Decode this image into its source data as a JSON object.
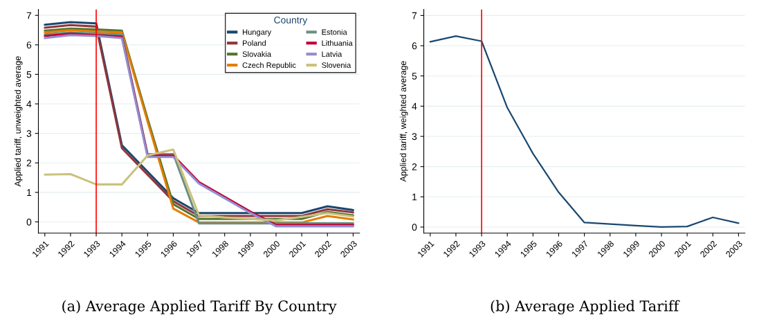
{
  "chart_data": [
    {
      "type": "line",
      "title": "(a) Average Applied Tariff By Country",
      "ylabel": "Applied tariff, unweighted average",
      "legend_title": "Country",
      "legend": "top right",
      "grid": "y",
      "x": [
        1991,
        1992,
        1993,
        1994,
        1995,
        1996,
        1997,
        1998,
        1999,
        2000,
        2001,
        2002,
        2003
      ],
      "xlim": [
        1990.75,
        2003.25
      ],
      "xticks": [
        1991,
        1992,
        1993,
        1994,
        1995,
        1996,
        1997,
        1998,
        1999,
        2000,
        2001,
        2002,
        2003
      ],
      "ylim": [
        -0.38,
        7.2
      ],
      "yticks": [
        0,
        1,
        2,
        3,
        4,
        5,
        6,
        7
      ],
      "ref_lines": [
        {
          "axis": "x",
          "value": 1993,
          "color": "#ff0000"
        }
      ],
      "series": [
        {
          "name": "Hungary",
          "color": "#1a476f",
          "values": [
            6.68,
            6.77,
            6.73,
            2.6,
            1.7,
            0.8,
            0.3,
            0.3,
            0.3,
            0.3,
            0.3,
            0.53,
            0.4
          ]
        },
        {
          "name": "Poland",
          "color": "#90353b",
          "values": [
            6.58,
            6.67,
            6.62,
            2.5,
            1.6,
            0.7,
            0.2,
            0.2,
            0.2,
            0.2,
            0.2,
            0.43,
            0.32
          ]
        },
        {
          "name": "Slovakia",
          "color": "#55752f",
          "values": [
            6.48,
            6.55,
            6.52,
            6.48,
            3.5,
            0.6,
            0.1,
            0.1,
            0.1,
            0.1,
            0.1,
            0.34,
            0.22
          ]
        },
        {
          "name": "Czech Republic",
          "color": "#e37e00",
          "values": [
            6.42,
            6.5,
            6.45,
            6.42,
            3.4,
            0.45,
            -0.02,
            -0.02,
            -0.02,
            -0.02,
            -0.02,
            0.2,
            0.08
          ]
        },
        {
          "name": "Estonia",
          "color": "#6e8e84",
          "values": [
            6.35,
            6.42,
            6.38,
            6.35,
            2.3,
            2.3,
            -0.05,
            -0.05,
            -0.05,
            -0.05,
            -0.05,
            -0.05,
            -0.05
          ]
        },
        {
          "name": "Lithuania",
          "color": "#c10534",
          "values": [
            6.3,
            6.38,
            6.33,
            6.28,
            2.25,
            2.25,
            1.35,
            0.85,
            0.35,
            -0.1,
            -0.1,
            -0.1,
            -0.1
          ]
        },
        {
          "name": "Latvia",
          "color": "#938dd2",
          "values": [
            6.23,
            6.33,
            6.3,
            6.23,
            2.2,
            2.2,
            1.3,
            0.8,
            0.3,
            -0.15,
            -0.15,
            -0.15,
            -0.15
          ]
        },
        {
          "name": "Slovenia",
          "color": "#cac27e",
          "values": [
            1.6,
            1.62,
            1.27,
            1.27,
            2.25,
            2.45,
            0.22,
            0.15,
            0.1,
            0.05,
            0.17,
            0.3,
            0.18
          ]
        }
      ]
    },
    {
      "type": "line",
      "title": "(b) Average Applied Tariff",
      "ylabel": "Applied tariff, weighted average",
      "grid": "y",
      "x": [
        1991,
        1992,
        1993,
        1994,
        1995,
        1996,
        1997,
        1998,
        1999,
        2000,
        2001,
        2002,
        2003
      ],
      "xlim": [
        1990.75,
        2003.25
      ],
      "xticks": [
        1991,
        1992,
        1993,
        1994,
        1995,
        1996,
        1997,
        1998,
        1999,
        2000,
        2001,
        2002,
        2003
      ],
      "ylim": [
        -0.2,
        7.2
      ],
      "yticks": [
        0,
        1,
        2,
        3,
        4,
        5,
        6,
        7
      ],
      "ref_lines": [
        {
          "axis": "x",
          "value": 1993,
          "color": "#ff0000"
        }
      ],
      "series": [
        {
          "color": "#1a476f",
          "values": [
            6.13,
            6.32,
            6.15,
            3.95,
            2.43,
            1.15,
            0.15,
            0.1,
            0.05,
            0.0,
            0.02,
            0.32,
            0.13
          ]
        }
      ]
    }
  ]
}
